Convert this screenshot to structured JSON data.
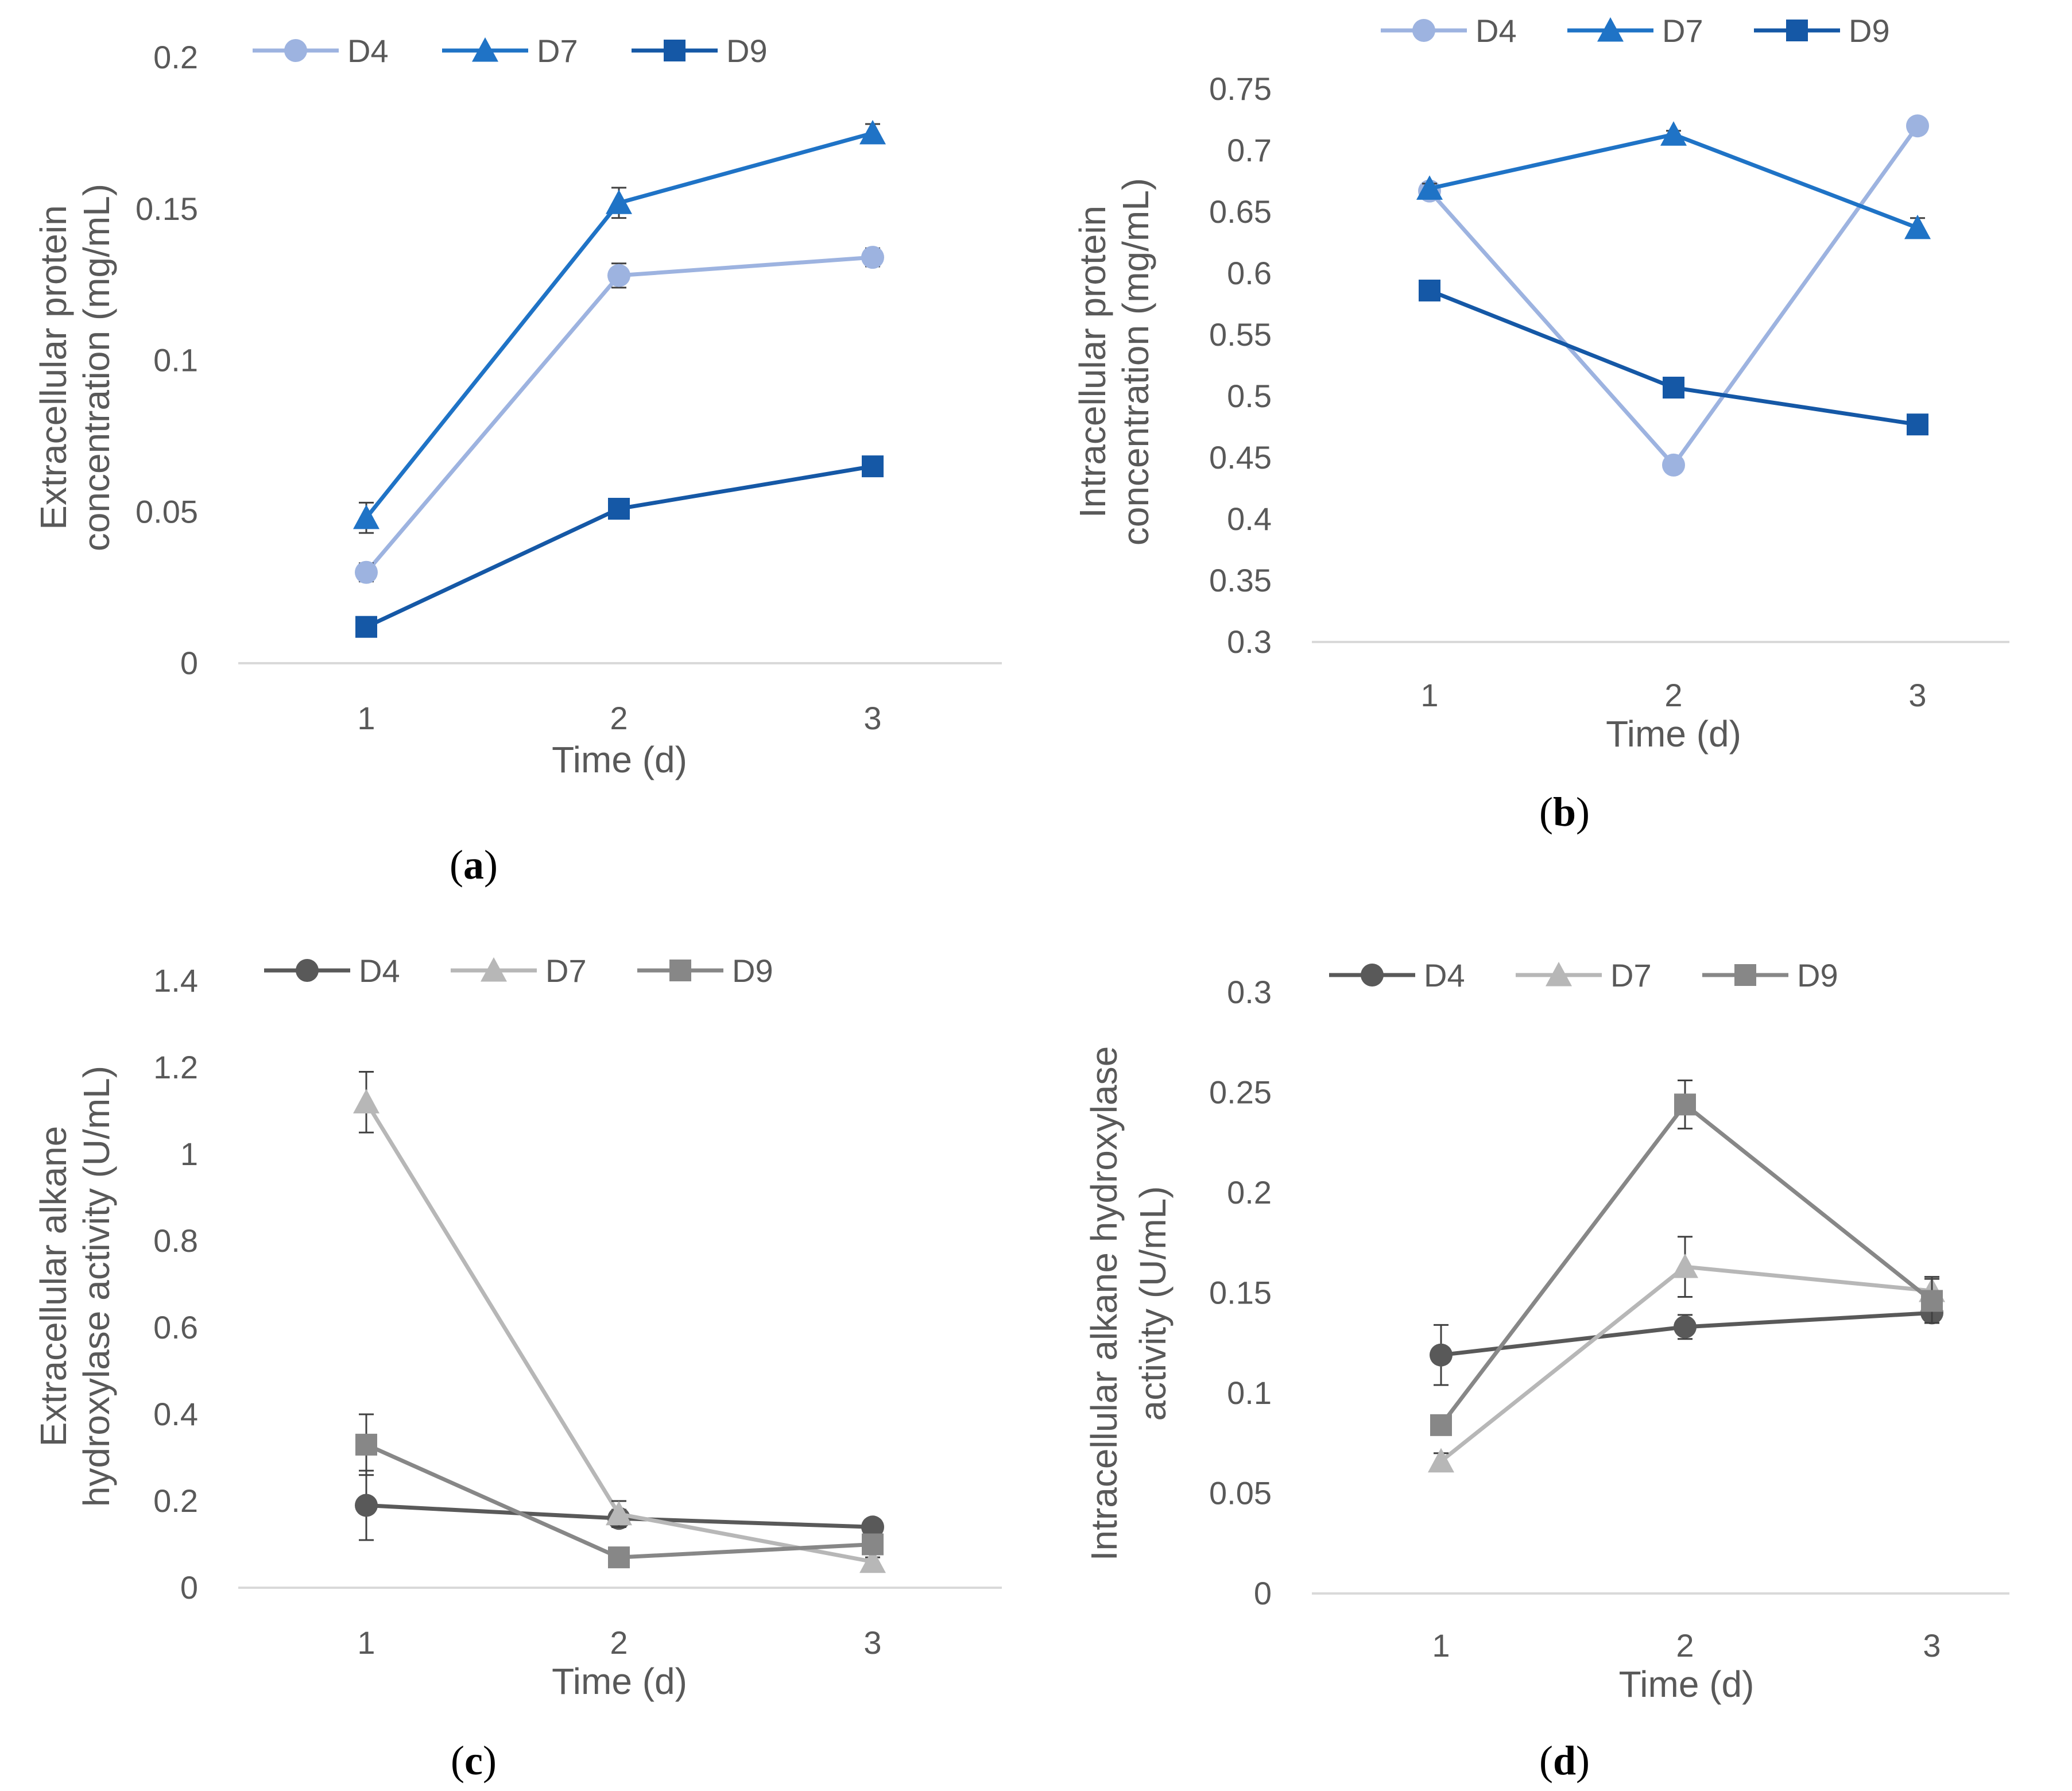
{
  "chart_data": [
    {
      "type": "line",
      "panel": "(a)",
      "panel_letter": "a",
      "xlabel": "Time (d)",
      "ylabel_lines": [
        "Extracellular protein",
        "concentration (mg/mL)"
      ],
      "categories": [
        "1",
        "2",
        "3"
      ],
      "ylim": [
        0,
        0.2
      ],
      "yticks": [
        0,
        0.05,
        0.1,
        0.15,
        0.2
      ],
      "ytick_labels": [
        "0",
        "0.05",
        "0.1",
        "0.15",
        "0.2"
      ],
      "legend_position": "top",
      "series": [
        {
          "name": "D4",
          "values": [
            0.03,
            0.128,
            0.134
          ],
          "errors": [
            0.003,
            0.004,
            0.003
          ],
          "color": "#9DB3E0",
          "marker": "circle"
        },
        {
          "name": "D7",
          "values": [
            0.048,
            0.152,
            0.175
          ],
          "errors": [
            0.005,
            0.005,
            0.003
          ],
          "color": "#1F73C6",
          "marker": "triangle"
        },
        {
          "name": "D9",
          "values": [
            0.012,
            0.051,
            0.065
          ],
          "errors": [
            0.003,
            0.003,
            0.002
          ],
          "color": "#1558A6",
          "marker": "square"
        }
      ]
    },
    {
      "type": "line",
      "panel": "(b)",
      "panel_letter": "b",
      "xlabel": "Time (d)",
      "ylabel_lines": [
        "Intracellular protein",
        "concentration (mg/mL)"
      ],
      "categories": [
        "1",
        "2",
        "3"
      ],
      "ylim": [
        0.3,
        0.75
      ],
      "yticks": [
        0.3,
        0.35,
        0.4,
        0.45,
        0.5,
        0.55,
        0.6,
        0.65,
        0.7,
        0.75
      ],
      "ytick_labels": [
        "0.3",
        "0.35",
        "0.4",
        "0.45",
        "0.5",
        "0.55",
        "0.6",
        "0.65",
        "0.7",
        "0.75"
      ],
      "legend_position": "top",
      "series": [
        {
          "name": "D4",
          "values": [
            0.667,
            0.444,
            0.72
          ],
          "errors": [
            0.004,
            0.004,
            0.004
          ],
          "color": "#9DB3E0",
          "marker": "circle"
        },
        {
          "name": "D7",
          "values": [
            0.669,
            0.713,
            0.637
          ],
          "errors": [
            0.004,
            0.003,
            0.008
          ],
          "color": "#1F73C6",
          "marker": "triangle"
        },
        {
          "name": "D9",
          "values": [
            0.586,
            0.507,
            0.477
          ],
          "errors": [
            0.003,
            0.003,
            0.003
          ],
          "color": "#1558A6",
          "marker": "square"
        }
      ]
    },
    {
      "type": "line",
      "panel": "(c)",
      "panel_letter": "c",
      "xlabel": "Time (d)",
      "ylabel_lines": [
        "Extracellular alkane",
        "hydroxylase activity (U/mL)"
      ],
      "categories": [
        "1",
        "2",
        "3"
      ],
      "ylim": [
        0,
        1.4
      ],
      "yticks": [
        0,
        0.2,
        0.4,
        0.6,
        0.8,
        1,
        1.2,
        1.4
      ],
      "ytick_labels": [
        "0",
        "0.2",
        "0.4",
        "0.6",
        "0.8",
        "1",
        "1.2",
        "1.4"
      ],
      "legend_position": "top",
      "series": [
        {
          "name": "D4",
          "values": [
            0.19,
            0.16,
            0.14
          ],
          "errors": [
            0.08,
            0.02,
            0.01
          ],
          "color": "#595959",
          "marker": "circle"
        },
        {
          "name": "D7",
          "values": [
            1.12,
            0.17,
            0.06
          ],
          "errors": [
            0.07,
            0.03,
            0.01
          ],
          "color": "#B7B7B7",
          "marker": "triangle"
        },
        {
          "name": "D9",
          "values": [
            0.33,
            0.07,
            0.1
          ],
          "errors": [
            0.07,
            0.02,
            0.02
          ],
          "color": "#878787",
          "marker": "square"
        }
      ]
    },
    {
      "type": "line",
      "panel": "(d)",
      "panel_letter": "d",
      "xlabel": "Time (d)",
      "ylabel_lines": [
        "Intracellular alkane hydroxylase",
        "activity (U/mL)"
      ],
      "categories": [
        "1",
        "2",
        "3"
      ],
      "ylim": [
        0,
        0.3
      ],
      "yticks": [
        0,
        0.05,
        0.1,
        0.15,
        0.2,
        0.25,
        0.3
      ],
      "ytick_labels": [
        "0",
        "0.05",
        "0.1",
        "0.15",
        "0.2",
        "0.25",
        "0.3"
      ],
      "legend_position": "top",
      "series": [
        {
          "name": "D4",
          "values": [
            0.119,
            0.133,
            0.14
          ],
          "errors": [
            0.015,
            0.006,
            0.005
          ],
          "color": "#595959",
          "marker": "circle"
        },
        {
          "name": "D7",
          "values": [
            0.066,
            0.163,
            0.151
          ],
          "errors": [
            0.004,
            0.015,
            0.007
          ],
          "color": "#B7B7B7",
          "marker": "triangle"
        },
        {
          "name": "D9",
          "values": [
            0.084,
            0.244,
            0.146
          ],
          "errors": [
            0.003,
            0.012,
            0.011
          ],
          "color": "#878787",
          "marker": "square"
        }
      ]
    }
  ]
}
